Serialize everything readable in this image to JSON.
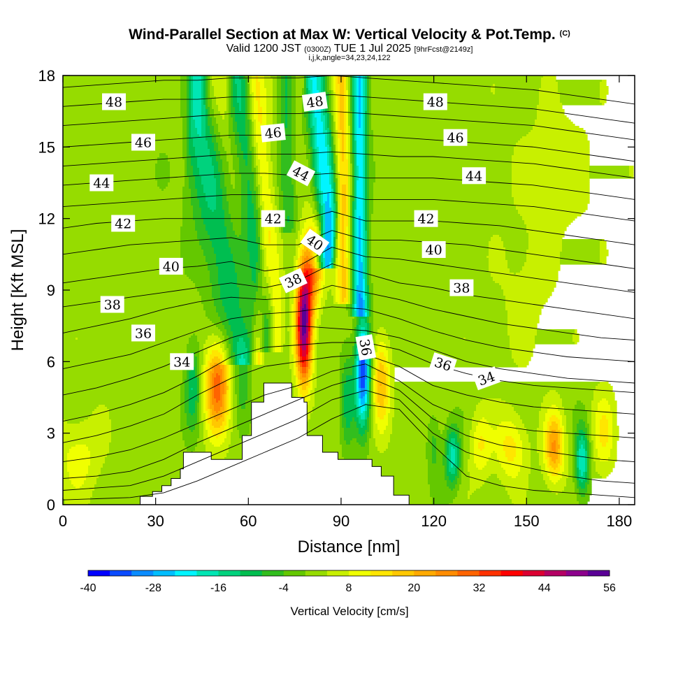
{
  "header": {
    "title": "Wind-Parallel Section at Max W: Vertical Velocity & Pot.Temp.",
    "copyright": "(C)",
    "valid_prefix": "Valid 1200 JST",
    "valid_utc": "(0300Z)",
    "valid_date": "TUE 1 Jul 2025",
    "forecast_info": "[9hrFcst@2149z]",
    "params": "i,j,k,angle=34,23,24,122"
  },
  "chart_data": {
    "type": "heatmap",
    "xlabel": "Distance [nm]",
    "ylabel": "Height [Kft MSL]",
    "xlim": [
      0,
      185
    ],
    "ylim": [
      0,
      18
    ],
    "x_ticks": [
      "0",
      "30",
      "60",
      "90",
      "120",
      "150",
      "180"
    ],
    "y_ticks": [
      "0",
      "3",
      "6",
      "9",
      "12",
      "15",
      "18"
    ],
    "colorbar": {
      "label": "Vertical Velocity [cm/s]",
      "min": -40,
      "max": 56,
      "step": 4,
      "tick_labels": [
        "-40",
        "-28",
        "-16",
        "-4",
        "8",
        "20",
        "32",
        "44",
        "56"
      ],
      "colors": [
        "#0000ff",
        "#0a4bff",
        "#0a8cff",
        "#00beff",
        "#00f5ff",
        "#00e6b4",
        "#00d27d",
        "#00be50",
        "#32be1e",
        "#64c800",
        "#96dc00",
        "#c8f000",
        "#f0ff00",
        "#ffe600",
        "#ffc800",
        "#ffaa00",
        "#ff8c00",
        "#ff6400",
        "#ff3200",
        "#ff0000",
        "#dc0032",
        "#b40064",
        "#8c008c",
        "#5a0096"
      ]
    },
    "background_velocity": 2,
    "velocity_features": [
      {
        "x": 50,
        "y": 5.0,
        "sx": 2.8,
        "sy": 1.4,
        "v": 28
      },
      {
        "x": 42,
        "y": 5.0,
        "sx": 1.8,
        "sy": 1.3,
        "v": -14
      },
      {
        "x": 58,
        "y": 5.5,
        "sx": 1.8,
        "sy": 1.2,
        "v": -10
      },
      {
        "x": 78,
        "y": 7.6,
        "sx": 1.8,
        "sy": 1.8,
        "v": 50
      },
      {
        "x": 81,
        "y": 10.0,
        "sx": 2.2,
        "sy": 1.3,
        "v": 22
      },
      {
        "x": 97,
        "y": 5.6,
        "sx": 1.7,
        "sy": 1.6,
        "v": -38
      },
      {
        "x": 103,
        "y": 5.2,
        "sx": 2.0,
        "sy": 1.3,
        "v": 18
      },
      {
        "x": 92,
        "y": 4.5,
        "sx": 1.5,
        "sy": 1.5,
        "v": -12
      },
      {
        "x": 126,
        "y": 2.0,
        "sx": 1.8,
        "sy": 0.9,
        "v": -20
      },
      {
        "x": 120,
        "y": 2.5,
        "sx": 1.5,
        "sy": 1.0,
        "v": -8
      },
      {
        "x": 135,
        "y": 2.5,
        "sx": 2.4,
        "sy": 1.0,
        "v": 10
      },
      {
        "x": 145,
        "y": 2.4,
        "sx": 3.5,
        "sy": 1.0,
        "v": 12
      },
      {
        "x": 159,
        "y": 2.4,
        "sx": 2.2,
        "sy": 1.0,
        "v": 22
      },
      {
        "x": 168,
        "y": 1.8,
        "sx": 1.6,
        "sy": 1.0,
        "v": -22
      },
      {
        "x": 175,
        "y": 3.0,
        "sx": 2.5,
        "sy": 1.2,
        "v": 10
      },
      {
        "x": 5,
        "y": 2.0,
        "sx": 5.0,
        "sy": 1.2,
        "v": 8
      },
      {
        "x": 40,
        "y": 14.0,
        "sx": 5.0,
        "sy": 1.5,
        "v": -2
      },
      {
        "x": 160,
        "y": 14.0,
        "sx": 8.0,
        "sy": 2.0,
        "v": 5
      },
      {
        "x": 150,
        "y": 9.0,
        "sx": 6.0,
        "sy": 2.0,
        "v": 4
      }
    ],
    "velocity_bands": [
      {
        "x0": 60,
        "y0": 6.5,
        "x1": 43,
        "y1": 18,
        "width": 1.8,
        "v": -20
      },
      {
        "x0": 63,
        "y0": 6.5,
        "x1": 48,
        "y1": 18,
        "width": 1.6,
        "v": 14
      },
      {
        "x0": 66,
        "y0": 7.0,
        "x1": 56,
        "y1": 18,
        "width": 1.6,
        "v": -14
      },
      {
        "x0": 69,
        "y0": 7.0,
        "x1": 62,
        "y1": 18,
        "width": 1.6,
        "v": 12
      },
      {
        "x0": 83,
        "y0": 11.5,
        "x1": 78,
        "y1": 18,
        "width": 1.6,
        "v": 18
      },
      {
        "x0": 86,
        "y0": 10.5,
        "x1": 80,
        "y1": 18,
        "width": 2.0,
        "v": -34
      },
      {
        "x0": 91,
        "y0": 9.0,
        "x1": 90,
        "y1": 18,
        "width": 1.8,
        "v": 16
      },
      {
        "x0": 96,
        "y0": 8.5,
        "x1": 96,
        "y1": 18,
        "width": 1.8,
        "v": -26
      },
      {
        "x0": 73,
        "y0": 12.0,
        "x1": 72,
        "y1": 18,
        "width": 1.8,
        "v": -10
      }
    ],
    "terrain": [
      [
        25,
        0
      ],
      [
        25,
        0.35
      ],
      [
        29,
        0.35
      ],
      [
        29,
        0.55
      ],
      [
        32,
        0.55
      ],
      [
        32,
        0.8
      ],
      [
        35,
        0.8
      ],
      [
        35,
        1.1
      ],
      [
        38,
        1.1
      ],
      [
        38,
        1.5
      ],
      [
        39,
        1.5
      ],
      [
        39,
        2.2
      ],
      [
        48,
        2.2
      ],
      [
        48,
        1.9
      ],
      [
        58,
        1.9
      ],
      [
        58,
        2.9
      ],
      [
        61,
        2.9
      ],
      [
        61,
        4.3
      ],
      [
        65,
        4.3
      ],
      [
        65,
        5.1
      ],
      [
        74,
        5.1
      ],
      [
        74,
        4.5
      ],
      [
        78,
        4.5
      ],
      [
        78,
        4.3
      ],
      [
        79,
        4.3
      ],
      [
        79,
        2.9
      ],
      [
        84,
        2.9
      ],
      [
        84,
        2.2
      ],
      [
        89,
        2.2
      ],
      [
        89,
        1.9
      ],
      [
        100,
        1.9
      ],
      [
        100,
        1.6
      ],
      [
        103,
        1.6
      ],
      [
        103,
        1.2
      ],
      [
        107,
        1.2
      ],
      [
        107,
        0.4
      ],
      [
        112,
        0.4
      ],
      [
        112,
        0
      ]
    ],
    "theta_levels": [
      {
        "theta": 30,
        "ys": [
          0.2,
          0.25,
          0.3,
          0.5,
          1.0,
          1.6,
          2.2,
          2.8,
          3.6,
          4.2,
          4.0,
          2.5,
          1.2,
          0.8,
          0.6,
          0.5,
          0.4,
          0.3
        ]
      },
      {
        "theta": 31,
        "ys": [
          0.6,
          0.7,
          0.8,
          1.2,
          1.8,
          2.4,
          3.0,
          3.6,
          4.4,
          4.8,
          4.4,
          3.0,
          2.2,
          1.8,
          1.5,
          1.2,
          1.0,
          0.9
        ]
      },
      {
        "theta": 32,
        "ys": [
          1.1,
          1.2,
          1.4,
          1.9,
          2.6,
          3.2,
          3.8,
          4.4,
          5.0,
          5.4,
          4.8,
          3.6,
          2.9,
          2.5,
          2.3,
          2.1,
          1.9,
          1.8
        ]
      },
      {
        "theta": 33,
        "ys": [
          1.8,
          2.0,
          2.3,
          2.8,
          3.4,
          4.0,
          4.6,
          5.0,
          5.6,
          5.9,
          5.2,
          4.2,
          3.6,
          3.3,
          3.1,
          3.0,
          2.9,
          2.8
        ]
      },
      {
        "theta": 34,
        "ys": [
          2.6,
          2.9,
          3.3,
          3.8,
          4.6,
          5.3,
          5.8,
          6.0,
          6.2,
          6.3,
          5.8,
          5.0,
          4.6,
          4.3,
          4.1,
          4.0,
          3.9,
          3.8
        ]
      },
      {
        "theta": 35,
        "ys": [
          3.5,
          3.8,
          4.2,
          4.7,
          5.4,
          6.2,
          6.6,
          6.7,
          6.8,
          6.8,
          6.5,
          5.9,
          5.5,
          5.2,
          5.0,
          4.9,
          4.8,
          4.7
        ]
      },
      {
        "theta": 36,
        "ys": [
          4.6,
          4.9,
          5.3,
          5.8,
          6.4,
          7.0,
          7.4,
          7.5,
          7.4,
          7.3,
          7.0,
          6.5,
          6.0,
          5.7,
          5.5,
          5.3,
          5.2,
          5.1
        ]
      },
      {
        "theta": 37,
        "ys": [
          5.7,
          6.0,
          6.3,
          6.8,
          7.3,
          7.8,
          8.0,
          8.1,
          8.3,
          8.2,
          7.8,
          7.3,
          6.9,
          6.6,
          6.4,
          6.2,
          6.1,
          6.0
        ]
      },
      {
        "theta": 38,
        "ys": [
          7.2,
          7.5,
          7.8,
          8.2,
          8.5,
          8.7,
          8.6,
          8.7,
          9.2,
          8.9,
          8.6,
          8.2,
          7.9,
          7.6,
          7.4,
          7.2,
          7.0,
          6.9
        ]
      },
      {
        "theta": 39,
        "ys": [
          8.3,
          8.5,
          8.7,
          8.9,
          9.1,
          9.3,
          9.1,
          9.4,
          10.1,
          9.7,
          9.3,
          9.1,
          8.8,
          8.6,
          8.4,
          8.2,
          8.0,
          7.8
        ]
      },
      {
        "theta": 40,
        "ys": [
          9.3,
          9.5,
          9.7,
          9.9,
          10.0,
          10.2,
          9.8,
          10.0,
          10.8,
          10.4,
          10.3,
          10.1,
          9.9,
          9.7,
          9.5,
          9.3,
          9.1,
          8.9
        ]
      },
      {
        "theta": 41,
        "ys": [
          10.5,
          10.7,
          10.9,
          11.0,
          11.1,
          11.2,
          10.9,
          10.9,
          11.5,
          11.1,
          11.1,
          11.0,
          10.9,
          10.7,
          10.5,
          10.3,
          10.1,
          9.9
        ]
      },
      {
        "theta": 42,
        "ys": [
          11.6,
          11.8,
          11.9,
          12.0,
          12.0,
          12.0,
          12.0,
          11.9,
          12.3,
          11.9,
          11.9,
          11.9,
          11.8,
          11.7,
          11.5,
          11.3,
          11.1,
          10.9
        ]
      },
      {
        "theta": 43,
        "ys": [
          12.5,
          12.6,
          12.7,
          12.8,
          12.9,
          13.0,
          13.0,
          12.9,
          13.1,
          12.8,
          12.8,
          12.8,
          12.7,
          12.6,
          12.5,
          12.3,
          12.1,
          11.9
        ]
      },
      {
        "theta": 44,
        "ys": [
          13.4,
          13.5,
          13.6,
          13.7,
          13.8,
          13.9,
          13.9,
          13.8,
          13.9,
          13.7,
          13.7,
          13.7,
          13.6,
          13.5,
          13.4,
          13.2,
          13.0,
          12.8
        ]
      },
      {
        "theta": 45,
        "ys": [
          14.2,
          14.3,
          14.4,
          14.5,
          14.6,
          14.7,
          14.7,
          14.7,
          14.8,
          14.7,
          14.6,
          14.6,
          14.5,
          14.4,
          14.3,
          14.1,
          13.9,
          13.7
        ]
      },
      {
        "theta": 46,
        "ys": [
          15.0,
          15.1,
          15.2,
          15.3,
          15.4,
          15.5,
          15.5,
          15.5,
          15.6,
          15.5,
          15.4,
          15.3,
          15.2,
          15.1,
          15.0,
          14.8,
          14.6,
          14.4
        ]
      },
      {
        "theta": 47,
        "ys": [
          15.9,
          16.0,
          16.1,
          16.2,
          16.3,
          16.4,
          16.4,
          16.4,
          16.5,
          16.4,
          16.3,
          16.2,
          16.1,
          16.0,
          15.9,
          15.7,
          15.5,
          15.3
        ]
      },
      {
        "theta": 48,
        "ys": [
          16.7,
          16.8,
          16.9,
          17.0,
          17.0,
          17.1,
          17.1,
          17.1,
          17.2,
          17.1,
          17.0,
          16.9,
          16.8,
          16.7,
          16.6,
          16.4,
          16.2,
          16.0
        ]
      },
      {
        "theta": 49,
        "ys": [
          17.5,
          17.6,
          17.7,
          17.8,
          17.8,
          17.9,
          17.9,
          17.9,
          18.0,
          17.9,
          17.8,
          17.7,
          17.6,
          17.5,
          17.4,
          17.2,
          17.0,
          16.8
        ]
      }
    ],
    "theta_labels": [
      {
        "text": "48",
        "x": 16.5,
        "y": 16.9,
        "angle": 0
      },
      {
        "text": "48",
        "x": 81.5,
        "y": 16.9,
        "angle": -8
      },
      {
        "text": "48",
        "x": 120.5,
        "y": 16.9,
        "angle": 0
      },
      {
        "text": "46",
        "x": 26,
        "y": 15.2,
        "angle": 0
      },
      {
        "text": "46",
        "x": 68,
        "y": 15.6,
        "angle": -6
      },
      {
        "text": "46",
        "x": 127,
        "y": 15.4,
        "angle": 0
      },
      {
        "text": "44",
        "x": 12.5,
        "y": 13.5,
        "angle": 0
      },
      {
        "text": "44",
        "x": 77,
        "y": 13.9,
        "angle": 28
      },
      {
        "text": "44",
        "x": 133,
        "y": 13.8,
        "angle": 0
      },
      {
        "text": "42",
        "x": 19.5,
        "y": 11.8,
        "angle": 0
      },
      {
        "text": "42",
        "x": 68,
        "y": 12.0,
        "angle": 0
      },
      {
        "text": "42",
        "x": 117.5,
        "y": 12.0,
        "angle": 0
      },
      {
        "text": "40",
        "x": 35,
        "y": 10.0,
        "angle": 0
      },
      {
        "text": "40",
        "x": 81.5,
        "y": 11.0,
        "angle": 35
      },
      {
        "text": "40",
        "x": 120,
        "y": 10.7,
        "angle": 0
      },
      {
        "text": "38",
        "x": 16,
        "y": 8.4,
        "angle": 0
      },
      {
        "text": "38",
        "x": 74.5,
        "y": 9.4,
        "angle": -25
      },
      {
        "text": "38",
        "x": 129,
        "y": 9.1,
        "angle": 0
      },
      {
        "text": "36",
        "x": 26,
        "y": 7.2,
        "angle": 0
      },
      {
        "text": "36",
        "x": 98,
        "y": 6.6,
        "angle": 80
      },
      {
        "text": "36",
        "x": 123,
        "y": 5.9,
        "angle": 18
      },
      {
        "text": "34",
        "x": 38.5,
        "y": 6.0,
        "angle": 0
      },
      {
        "text": "34",
        "x": 137,
        "y": 5.3,
        "angle": -20
      }
    ]
  }
}
